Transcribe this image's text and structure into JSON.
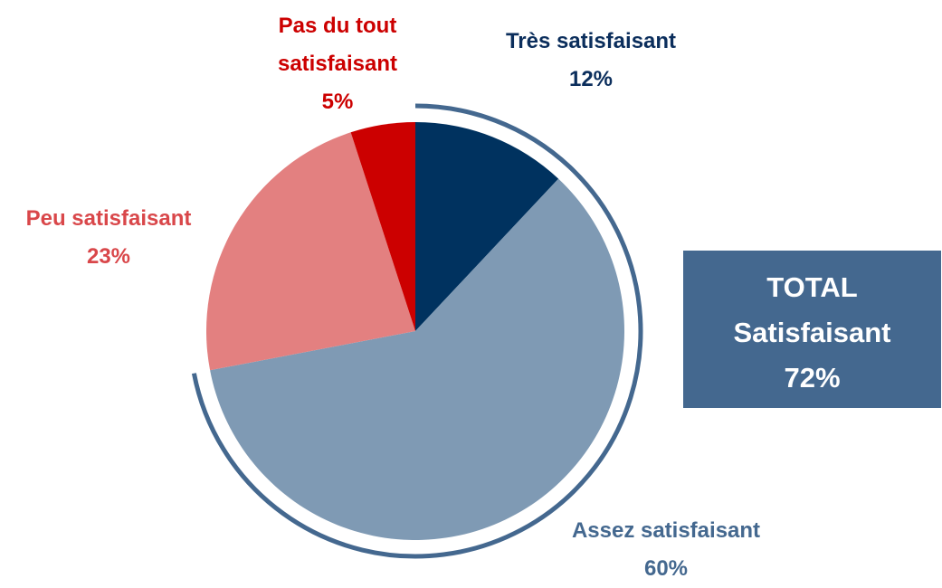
{
  "chart_data": {
    "type": "pie",
    "categories": [
      "Très satisfaisant",
      "Assez satisfaisant",
      "Peu satisfaisant",
      "Pas du tout satisfaisant"
    ],
    "values": [
      12,
      60,
      23,
      5
    ],
    "value_labels": [
      "12%",
      "60%",
      "23%",
      "5%"
    ],
    "colors": [
      "#00325f",
      "#7f9ab4",
      "#e38080",
      "#cc0000"
    ],
    "label_colors": [
      "#0b2e5c",
      "#44688f",
      "#d9474a",
      "#cc0000"
    ],
    "total_label": "TOTAL Satisfaisant",
    "total_value_label": "72%",
    "total_color": "#44688f"
  }
}
